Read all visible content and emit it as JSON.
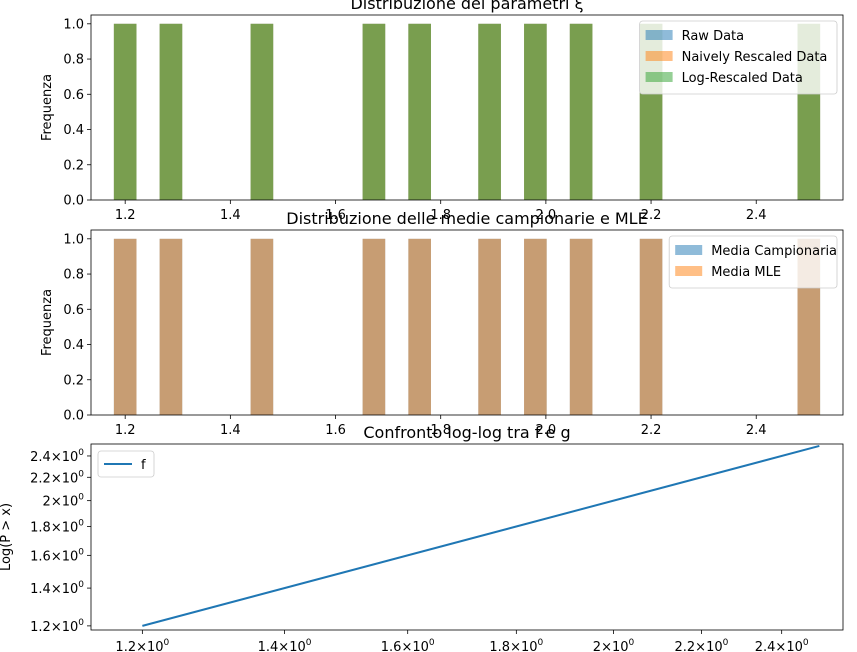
{
  "chart_data": [
    {
      "type": "bar",
      "title": "Distribuzione dei parametri ξ",
      "xlabel": "",
      "ylabel": "Frequenza",
      "xlim": [
        1.135,
        2.565
      ],
      "ylim": [
        0,
        1.05
      ],
      "xticks": [
        "1.2",
        "1.4",
        "1.6",
        "1.8",
        "2.0",
        "2.2",
        "2.4"
      ],
      "yticks": [
        "0.0",
        "0.2",
        "0.4",
        "0.6",
        "0.8",
        "1.0"
      ],
      "bin_centers": [
        1.2,
        1.287,
        1.46,
        1.673,
        1.76,
        1.893,
        1.98,
        2.067,
        2.2,
        2.5
      ],
      "bin_width": 0.043,
      "legend_position": "top-right",
      "series": [
        {
          "name": "Raw Data",
          "color": "#1f77b4",
          "values": [
            1,
            1,
            1,
            1,
            1,
            1,
            1,
            1,
            1,
            1
          ]
        },
        {
          "name": "Naively Rescaled Data",
          "color": "#ff7f0e",
          "values": [
            1,
            1,
            1,
            1,
            1,
            1,
            1,
            1,
            1,
            1
          ]
        },
        {
          "name": "Log-Rescaled Data",
          "color": "#2ca02c",
          "values": [
            1,
            1,
            1,
            1,
            1,
            1,
            1,
            1,
            1,
            1
          ]
        }
      ]
    },
    {
      "type": "bar",
      "title": "Distribuzione delle medie campionarie e MLE",
      "xlabel": "",
      "ylabel": "Frequenza",
      "xlim": [
        1.135,
        2.565
      ],
      "ylim": [
        0,
        1.05
      ],
      "xticks": [
        "1.2",
        "1.4",
        "1.6",
        "1.8",
        "2.0",
        "2.2",
        "2.4"
      ],
      "yticks": [
        "0.0",
        "0.2",
        "0.4",
        "0.6",
        "0.8",
        "1.0"
      ],
      "bin_centers": [
        1.2,
        1.287,
        1.46,
        1.673,
        1.76,
        1.893,
        1.98,
        2.067,
        2.2,
        2.5
      ],
      "bin_width": 0.043,
      "legend_position": "top-right",
      "series": [
        {
          "name": "Media Campionaria",
          "color": "#1f77b4",
          "values": [
            1,
            1,
            1,
            1,
            1,
            1,
            1,
            1,
            1,
            1
          ]
        },
        {
          "name": "Media MLE",
          "color": "#ff7f0e",
          "values": [
            1,
            1,
            1,
            1,
            1,
            1,
            1,
            1,
            1,
            1
          ]
        }
      ]
    },
    {
      "type": "line",
      "title": "Confronto log-log tra f e g",
      "xlabel": "",
      "ylabel": "Log(P > x)",
      "xscale": "log",
      "yscale": "log",
      "xlim": [
        1.135,
        2.565
      ],
      "ylim": [
        1.18,
        2.52
      ],
      "xticks": [
        {
          "mantissa": "1.2",
          "exponent": "0",
          "value": 1.2
        },
        {
          "mantissa": "1.4",
          "exponent": "0",
          "value": 1.4
        },
        {
          "mantissa": "1.6",
          "exponent": "0",
          "value": 1.6
        },
        {
          "mantissa": "1.8",
          "exponent": "0",
          "value": 1.8
        },
        {
          "mantissa": "2",
          "exponent": "0",
          "value": 2.0
        },
        {
          "mantissa": "2.2",
          "exponent": "0",
          "value": 2.2
        },
        {
          "mantissa": "2.4",
          "exponent": "0",
          "value": 2.4
        }
      ],
      "yticks": [
        {
          "mantissa": "1.2",
          "exponent": "0",
          "value": 1.2
        },
        {
          "mantissa": "1.4",
          "exponent": "0",
          "value": 1.4
        },
        {
          "mantissa": "1.6",
          "exponent": "0",
          "value": 1.6
        },
        {
          "mantissa": "1.8",
          "exponent": "0",
          "value": 1.8
        },
        {
          "mantissa": "2",
          "exponent": "0",
          "value": 2.0
        },
        {
          "mantissa": "2.2",
          "exponent": "0",
          "value": 2.2
        },
        {
          "mantissa": "2.4",
          "exponent": "0",
          "value": 2.4
        }
      ],
      "legend_position": "top-left",
      "series": [
        {
          "name": "f",
          "color": "#1f77b4",
          "x": [
            1.2,
            2.5
          ],
          "y": [
            1.2,
            2.5
          ]
        }
      ]
    }
  ]
}
